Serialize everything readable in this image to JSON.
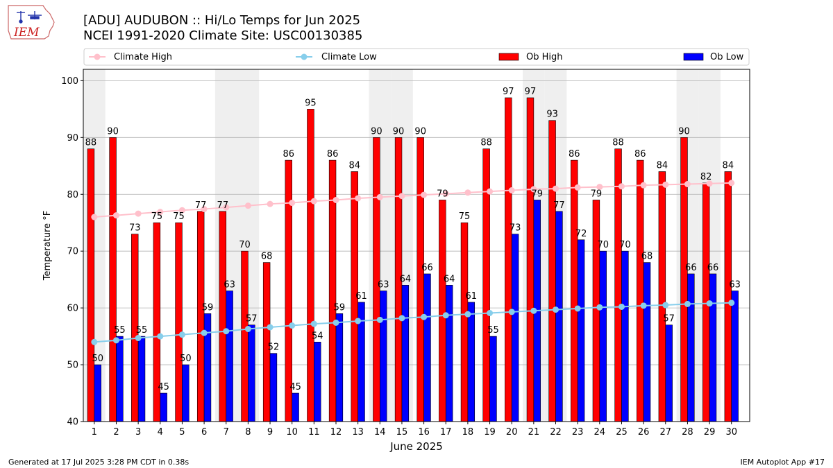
{
  "logo": {
    "text": "IEM"
  },
  "title": {
    "line1": "[ADU] AUDUBON :: Hi/Lo Temps for Jun 2025",
    "line2": "NCEI 1991-2020 Climate Site: USC00130385"
  },
  "footer": {
    "left": "Generated at 17 Jul 2025 3:28 PM CDT in 0.38s",
    "right": "IEM Autoplot App #17"
  },
  "legend": [
    {
      "label": "Climate High",
      "kind": "line",
      "color": "#ffc0cb"
    },
    {
      "label": "Climate Low",
      "kind": "line",
      "color": "#87ceeb"
    },
    {
      "label": "Ob High",
      "kind": "bar",
      "color": "#ff0000"
    },
    {
      "label": "Ob Low",
      "kind": "bar",
      "color": "#0000ff"
    }
  ],
  "chart_data": {
    "type": "bar",
    "xlabel": "June 2025",
    "ylabel": "Temperature °F",
    "ylim": [
      40,
      102
    ],
    "yticks": [
      40,
      50,
      60,
      70,
      80,
      90,
      100
    ],
    "categories": [
      "1",
      "2",
      "3",
      "4",
      "5",
      "6",
      "7",
      "8",
      "9",
      "10",
      "11",
      "12",
      "13",
      "14",
      "15",
      "16",
      "17",
      "18",
      "19",
      "20",
      "21",
      "22",
      "23",
      "24",
      "25",
      "26",
      "27",
      "28",
      "29",
      "30"
    ],
    "weekend_days": [
      1,
      7,
      8,
      14,
      15,
      21,
      22,
      28,
      29
    ],
    "grid": true,
    "legend_position": "top",
    "series": [
      {
        "name": "Ob High",
        "kind": "bar",
        "color": "#ff0000",
        "values": [
          88,
          90,
          73,
          75,
          75,
          77,
          77,
          70,
          68,
          86,
          95,
          86,
          84,
          90,
          90,
          90,
          79,
          75,
          88,
          97,
          97,
          93,
          86,
          79,
          88,
          86,
          84,
          90,
          82,
          84
        ],
        "labels": [
          "88",
          "90",
          "73",
          "75",
          "75",
          "77",
          "77",
          "70",
          "68",
          "86",
          "95",
          "86",
          "84",
          "90",
          "90",
          "90",
          "79",
          "75",
          "88",
          "97",
          "97",
          "93",
          "86",
          "79",
          "88",
          "86",
          "84",
          "90",
          "82",
          "84"
        ]
      },
      {
        "name": "Ob Low",
        "kind": "bar",
        "color": "#0000ff",
        "values": [
          50,
          55,
          55,
          45,
          50,
          59,
          63,
          57,
          52,
          45,
          54,
          59,
          61,
          63,
          64,
          66,
          64,
          61,
          55,
          73,
          79,
          77,
          72,
          70,
          70,
          68,
          57,
          66,
          66,
          63
        ],
        "labels": [
          "50",
          "55",
          "55",
          "45",
          "50",
          "59",
          "63",
          "57",
          "52",
          "45",
          "54",
          "59",
          "61",
          "63",
          "64",
          "66",
          "64",
          "61",
          "55",
          "73",
          "79",
          "77",
          "72",
          "70",
          "70",
          "68",
          "57",
          "66",
          "66",
          "63"
        ]
      },
      {
        "name": "Climate High",
        "kind": "line",
        "color": "#ffc0cb",
        "values": [
          76.0,
          76.3,
          76.6,
          76.9,
          77.2,
          77.4,
          77.7,
          78.0,
          78.3,
          78.5,
          78.8,
          79.0,
          79.3,
          79.5,
          79.7,
          79.9,
          80.1,
          80.3,
          80.5,
          80.7,
          80.9,
          81.0,
          81.2,
          81.3,
          81.4,
          81.6,
          81.7,
          81.8,
          81.9,
          82.0
        ]
      },
      {
        "name": "Climate Low",
        "kind": "line",
        "color": "#87ceeb",
        "values": [
          54.0,
          54.3,
          54.7,
          55.0,
          55.3,
          55.6,
          55.9,
          56.3,
          56.6,
          56.9,
          57.2,
          57.4,
          57.7,
          57.9,
          58.2,
          58.4,
          58.7,
          58.9,
          59.1,
          59.3,
          59.5,
          59.7,
          59.9,
          60.1,
          60.2,
          60.4,
          60.5,
          60.7,
          60.8,
          60.9
        ]
      }
    ]
  }
}
